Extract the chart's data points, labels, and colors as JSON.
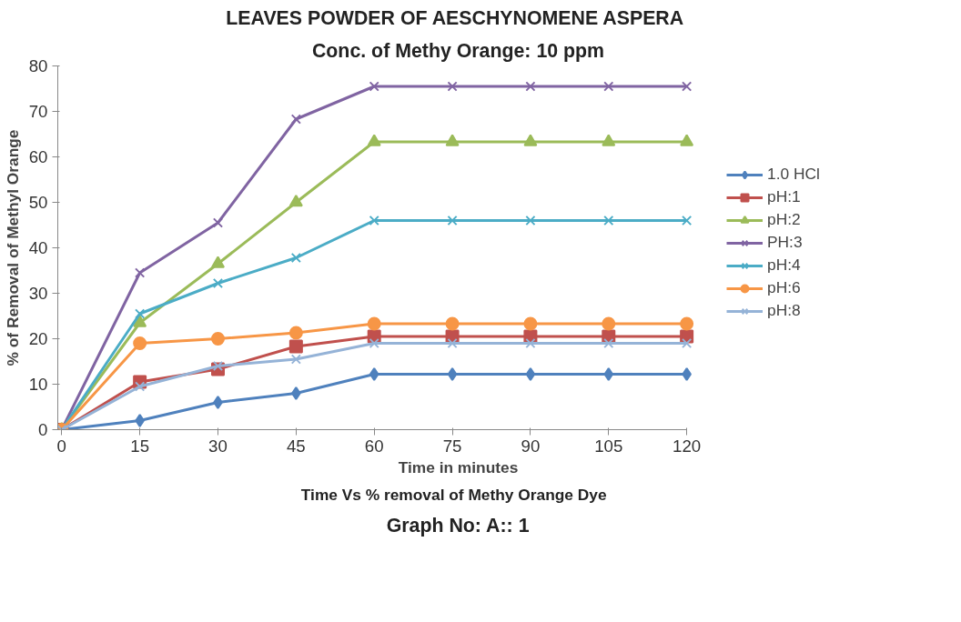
{
  "chart_data": {
    "type": "line",
    "title": "LEAVES POWDER OF  AESCHYNOMENE ASPERA",
    "subtitle": "Conc. of Methy Orange: 10 ppm",
    "xlabel": "Time in minutes",
    "ylabel": "% of Removal of Methyl Orange",
    "annotations": [
      "Time Vs %  removal of  Methy Orange Dye",
      "Graph No: A:: 1"
    ],
    "categories": [
      "0",
      "15",
      "30",
      "45",
      "60",
      "75",
      "90",
      "105",
      "120"
    ],
    "ylim": [
      0,
      80
    ],
    "yticks": [
      0,
      10,
      20,
      30,
      40,
      50,
      60,
      70,
      80
    ],
    "grid": false,
    "legend": "right",
    "series": [
      {
        "name": "1.0 HCl",
        "color": "#4f81bd",
        "marker": "diamond",
        "values": [
          0,
          2,
          6,
          8,
          12.2,
          12.2,
          12.2,
          12.2,
          12.2
        ]
      },
      {
        "name": "pH:1",
        "color": "#c0504d",
        "marker": "square",
        "values": [
          0,
          10.5,
          13.3,
          18.3,
          20.5,
          20.5,
          20.5,
          20.5,
          20.5
        ]
      },
      {
        "name": "pH:2",
        "color": "#9bbb59",
        "marker": "triangle",
        "values": [
          0,
          23.5,
          36.5,
          50,
          63.3,
          63.3,
          63.3,
          63.3,
          63.3
        ]
      },
      {
        "name": "PH:3",
        "color": "#8064a2",
        "marker": "cross",
        "values": [
          0,
          34.5,
          45.5,
          68.3,
          75.5,
          75.5,
          75.5,
          75.5,
          75.5
        ]
      },
      {
        "name": "pH:4",
        "color": "#4bacc6",
        "marker": "cross",
        "values": [
          0,
          25.5,
          32.2,
          37.8,
          46,
          46,
          46,
          46,
          46
        ]
      },
      {
        "name": "pH:6",
        "color": "#f79646",
        "marker": "circle",
        "values": [
          0,
          19,
          20,
          21.3,
          23.3,
          23.3,
          23.3,
          23.3,
          23.3
        ]
      },
      {
        "name": "pH:8",
        "color": "#95b3d7",
        "marker": "cross",
        "values": [
          0,
          9.5,
          14,
          15.5,
          19,
          19,
          19,
          19,
          19
        ]
      }
    ]
  }
}
